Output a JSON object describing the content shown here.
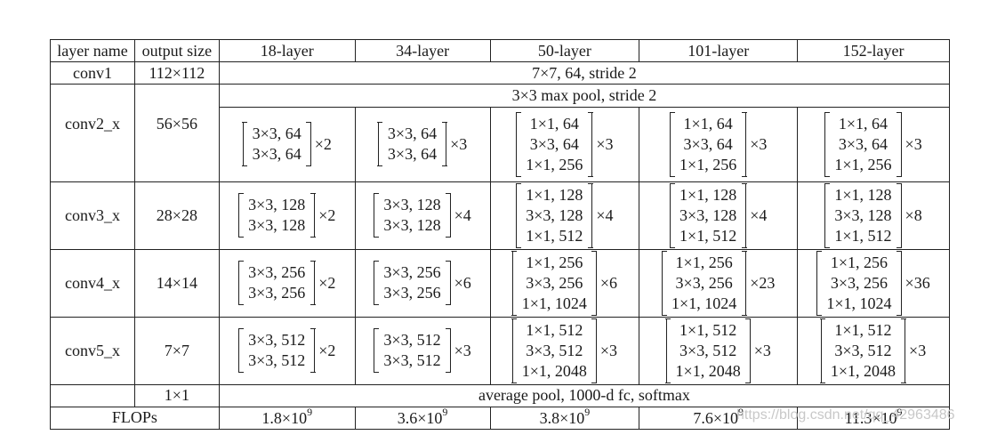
{
  "headers": [
    "layer name",
    "output size",
    "18-layer",
    "34-layer",
    "50-layer",
    "101-layer",
    "152-layer"
  ],
  "conv1": {
    "name": "conv1",
    "size": "112×112",
    "desc": "7×7, 64, stride 2"
  },
  "pool": {
    "desc": "3×3 max pool, stride 2"
  },
  "stages": [
    {
      "name": "conv2_x",
      "size": "56×56",
      "blocks": [
        {
          "lines": [
            "3×3, 64",
            "3×3, 64"
          ],
          "rep": "×2"
        },
        {
          "lines": [
            "3×3, 64",
            "3×3, 64"
          ],
          "rep": "×3"
        },
        {
          "lines": [
            "1×1, 64",
            "3×3, 64",
            "1×1, 256"
          ],
          "rep": "×3"
        },
        {
          "lines": [
            "1×1, 64",
            "3×3, 64",
            "1×1, 256"
          ],
          "rep": "×3"
        },
        {
          "lines": [
            "1×1, 64",
            "3×3, 64",
            "1×1, 256"
          ],
          "rep": "×3"
        }
      ]
    },
    {
      "name": "conv3_x",
      "size": "28×28",
      "blocks": [
        {
          "lines": [
            "3×3, 128",
            "3×3, 128"
          ],
          "rep": "×2"
        },
        {
          "lines": [
            "3×3, 128",
            "3×3, 128"
          ],
          "rep": "×4"
        },
        {
          "lines": [
            "1×1, 128",
            "3×3, 128",
            "1×1, 512"
          ],
          "rep": "×4"
        },
        {
          "lines": [
            "1×1, 128",
            "3×3, 128",
            "1×1, 512"
          ],
          "rep": "×4"
        },
        {
          "lines": [
            "1×1, 128",
            "3×3, 128",
            "1×1, 512"
          ],
          "rep": "×8"
        }
      ]
    },
    {
      "name": "conv4_x",
      "size": "14×14",
      "blocks": [
        {
          "lines": [
            "3×3, 256",
            "3×3, 256"
          ],
          "rep": "×2"
        },
        {
          "lines": [
            "3×3, 256",
            "3×3, 256"
          ],
          "rep": "×6"
        },
        {
          "lines": [
            "1×1, 256",
            "3×3, 256",
            "1×1, 1024"
          ],
          "rep": "×6"
        },
        {
          "lines": [
            "1×1, 256",
            "3×3, 256",
            "1×1, 1024"
          ],
          "rep": "×23"
        },
        {
          "lines": [
            "1×1, 256",
            "3×3, 256",
            "1×1, 1024"
          ],
          "rep": "×36"
        }
      ]
    },
    {
      "name": "conv5_x",
      "size": "7×7",
      "blocks": [
        {
          "lines": [
            "3×3, 512",
            "3×3, 512"
          ],
          "rep": "×2"
        },
        {
          "lines": [
            "3×3, 512",
            "3×3, 512"
          ],
          "rep": "×3"
        },
        {
          "lines": [
            "1×1, 512",
            "3×3, 512",
            "1×1, 2048"
          ],
          "rep": "×3"
        },
        {
          "lines": [
            "1×1, 512",
            "3×3, 512",
            "1×1, 2048"
          ],
          "rep": "×3"
        },
        {
          "lines": [
            "1×1, 512",
            "3×3, 512",
            "1×1, 2048"
          ],
          "rep": "×3"
        }
      ]
    }
  ],
  "fc": {
    "size": "1×1",
    "desc": "average pool, 1000-d fc, softmax"
  },
  "flops": {
    "label": "FLOPs",
    "values": [
      {
        "base": "1.8×10",
        "exp": "9"
      },
      {
        "base": "3.6×10",
        "exp": "9"
      },
      {
        "base": "3.8×10",
        "exp": "9"
      },
      {
        "base": "7.6×10",
        "exp": "9"
      },
      {
        "base": "11.3×10",
        "exp": "9"
      }
    ]
  },
  "watermark": "https://blog.csdn.net/qq_42963486"
}
